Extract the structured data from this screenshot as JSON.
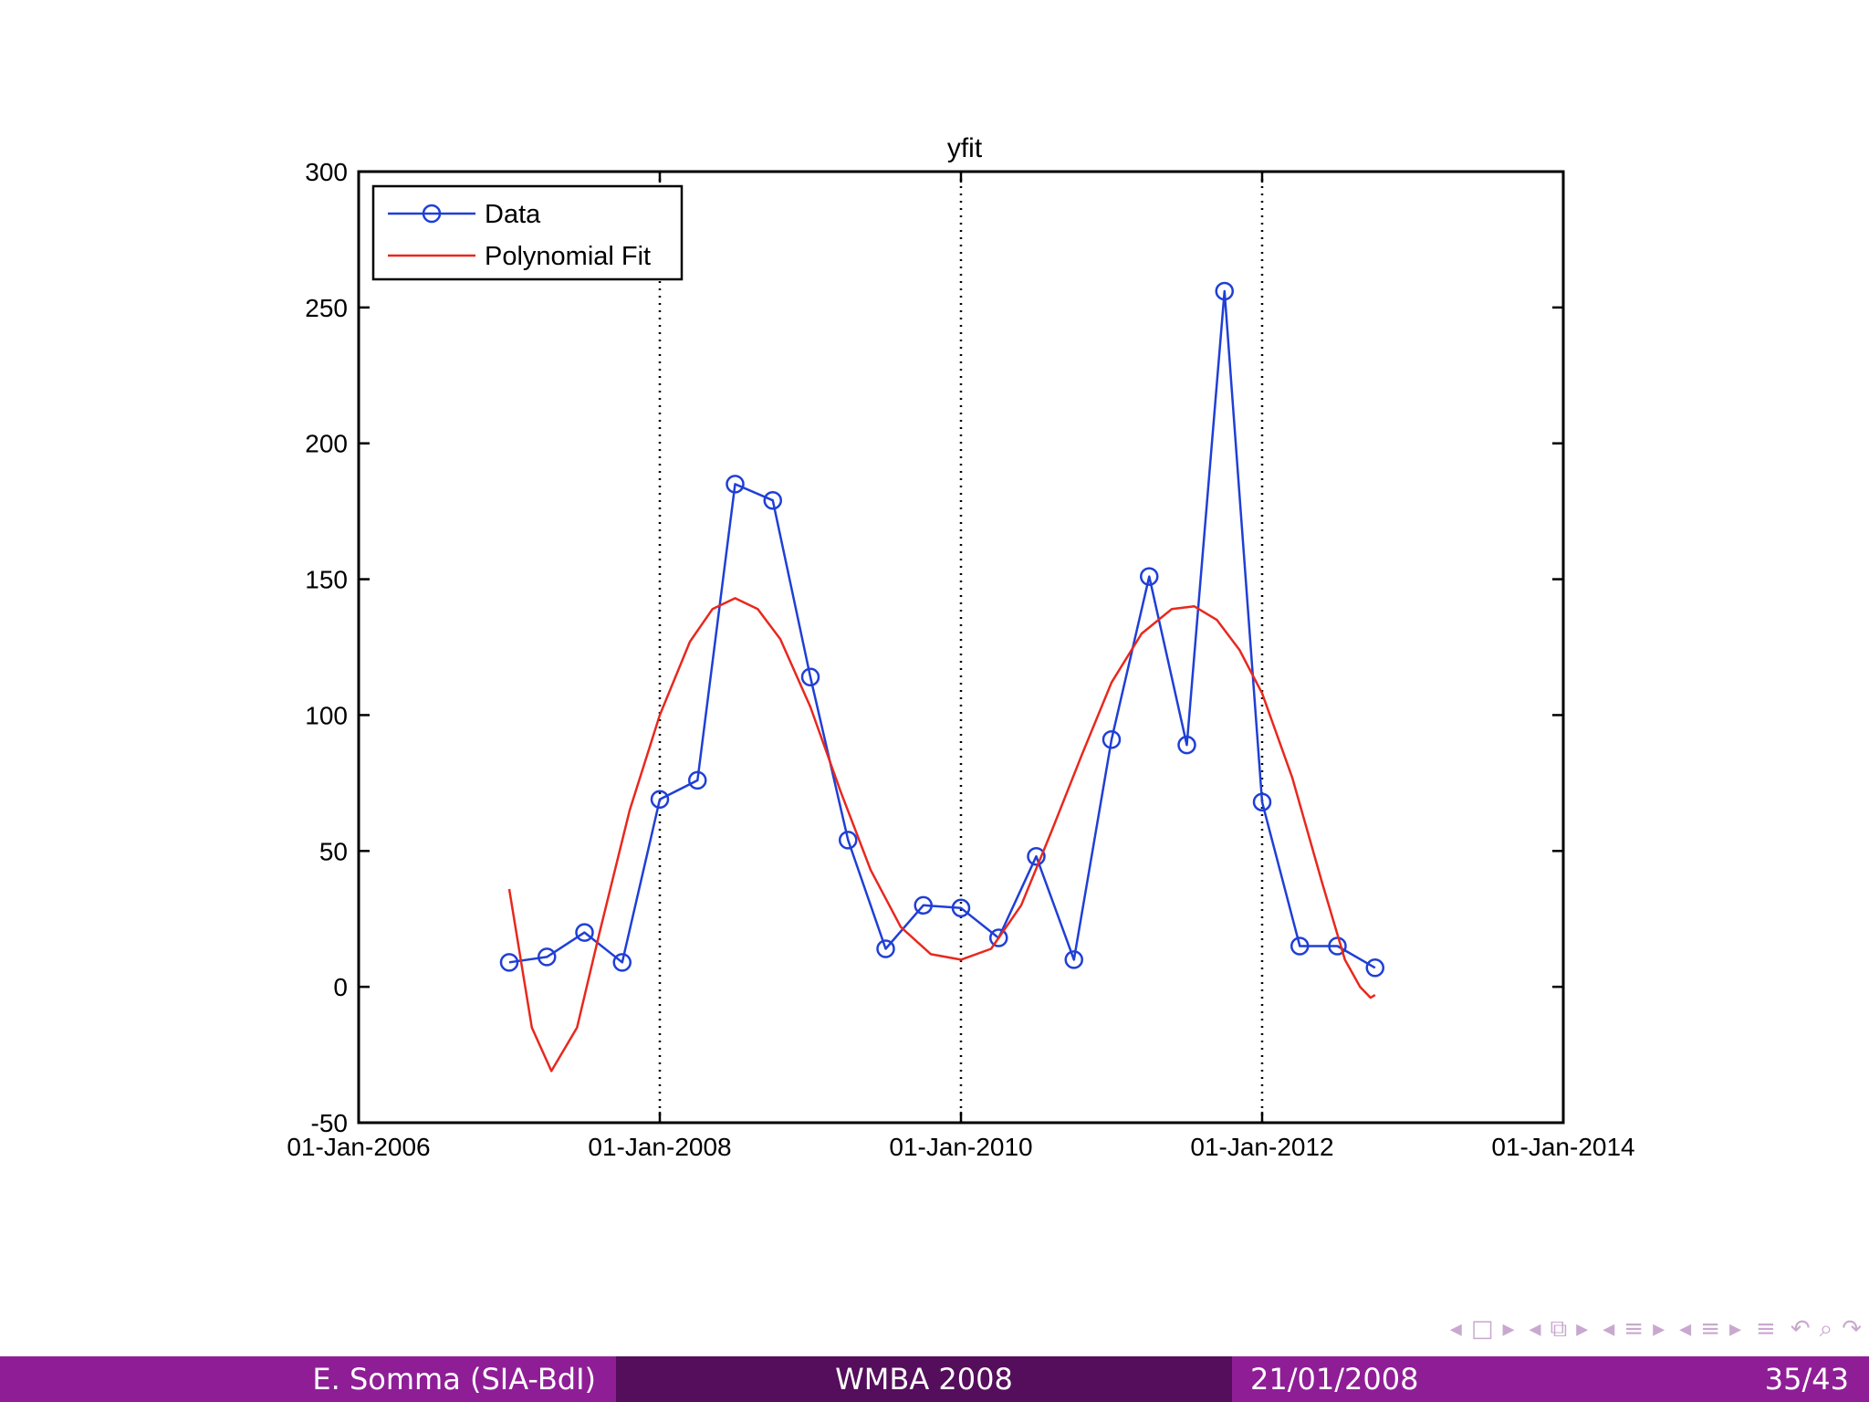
{
  "chart_data": {
    "type": "line",
    "title": "yfit",
    "xlabel": "",
    "ylabel": "",
    "ylim": [
      -50,
      300
    ],
    "yticks": [
      -50,
      0,
      50,
      100,
      150,
      200,
      250,
      300
    ],
    "xlim": [
      2006.0,
      2014.0
    ],
    "xticks": [
      {
        "value": 2006.0,
        "label": "01-Jan-2006"
      },
      {
        "value": 2008.0,
        "label": "01-Jan-2008"
      },
      {
        "value": 2010.0,
        "label": "01-Jan-2010"
      },
      {
        "value": 2012.0,
        "label": "01-Jan-2012"
      },
      {
        "value": 2014.0,
        "label": "01-Jan-2014"
      }
    ],
    "vgrid_dotted_at": [
      2008.0,
      2010.0,
      2012.0
    ],
    "legend": {
      "placement": "top-left",
      "entries": [
        "Data",
        "Polynomial Fit"
      ]
    },
    "series": [
      {
        "name": "Data",
        "color": "#1f3fd6",
        "marker": "circle",
        "x": [
          2007.0,
          2007.25,
          2007.5,
          2007.75,
          2008.0,
          2008.25,
          2008.5,
          2008.75,
          2009.0,
          2009.25,
          2009.5,
          2009.75,
          2010.0,
          2010.25,
          2010.5,
          2010.75,
          2011.0,
          2011.25,
          2011.5,
          2011.75,
          2012.0,
          2012.25,
          2012.5,
          2012.75
        ],
        "y": [
          9,
          11,
          20,
          9,
          69,
          76,
          185,
          179,
          114,
          54,
          14,
          30,
          29,
          18,
          48,
          10,
          91,
          151,
          89,
          256,
          68,
          15,
          15,
          7
        ]
      },
      {
        "name": "Polynomial Fit",
        "color": "#e8281e",
        "marker": "none",
        "x": [
          2007.0,
          2007.15,
          2007.28,
          2007.45,
          2007.6,
          2007.8,
          2008.0,
          2008.2,
          2008.35,
          2008.5,
          2008.65,
          2008.8,
          2009.0,
          2009.2,
          2009.4,
          2009.6,
          2009.8,
          2010.0,
          2010.2,
          2010.4,
          2010.6,
          2010.8,
          2011.0,
          2011.2,
          2011.4,
          2011.55,
          2011.7,
          2011.85,
          2012.0,
          2012.2,
          2012.4,
          2012.55,
          2012.65,
          2012.72,
          2012.75
        ],
        "y": [
          36,
          -15,
          -31,
          -15,
          20,
          65,
          100,
          127,
          139,
          143,
          139,
          128,
          103,
          72,
          43,
          22,
          12,
          10,
          14,
          30,
          57,
          85,
          112,
          130,
          139,
          140,
          135,
          124,
          108,
          77,
          38,
          10,
          0,
          -4,
          -3
        ]
      }
    ]
  },
  "footer": {
    "author": "E. Somma (SIA-BdI)",
    "event": "WMBA 2008",
    "date": "21/01/2008",
    "page": "35/43"
  },
  "nav": {
    "frame_prev": "◂",
    "frame_icon": "□",
    "frame_next": "▸",
    "sub_prev": "◂",
    "sub_icon": "⧉",
    "sub_next": "▸",
    "sec_prev": "◂",
    "sec_icon": "≡",
    "sec_next": "▸",
    "subsec_prev": "◂",
    "subsec_icon": "≡",
    "subsec_next": "▸",
    "toc_icon": "≡",
    "back_icon": "↶",
    "search_icon": "⌕",
    "forward_icon": "↷"
  }
}
